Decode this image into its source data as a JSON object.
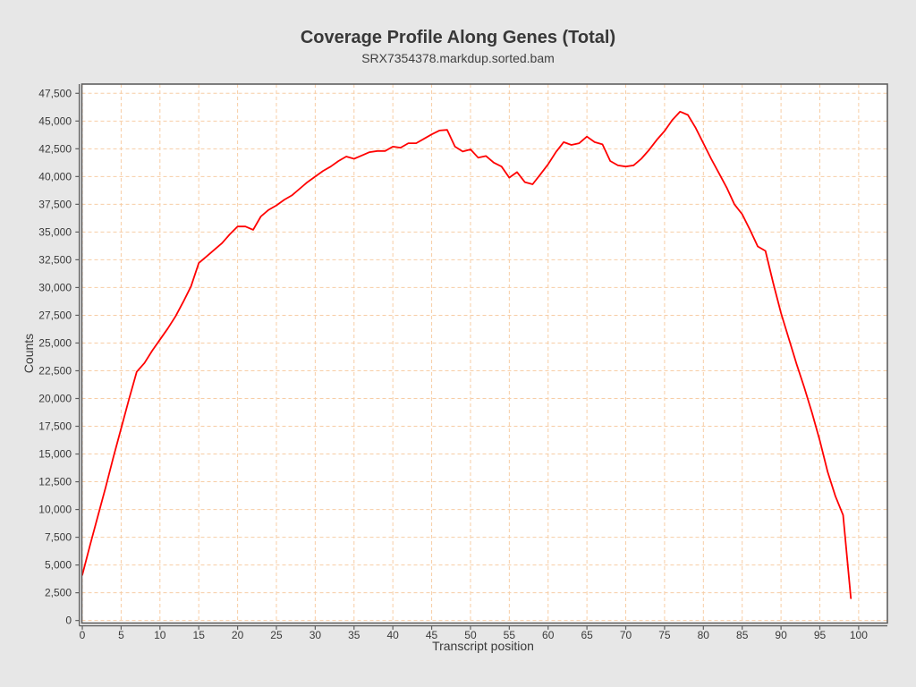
{
  "header": {
    "title": "Coverage Profile Along Genes (Total)",
    "subtitle": "SRX7354378.markdup.sorted.bam"
  },
  "style": {
    "page_bg": "#e7e7e7",
    "plot_bg": "#ffffff",
    "grid_color": "#f7cda5",
    "border_color": "#5f5f5f",
    "axis_color": "#5f5f5f",
    "text_color": "#3a3a3a",
    "line_color": "#ff0000"
  },
  "chart_data": {
    "type": "line",
    "title": "Coverage Profile Along Genes (Total)",
    "subtitle": "SRX7354378.markdup.sorted.bam",
    "xlabel": "Transcript position",
    "ylabel": "Counts",
    "xlim": [
      -0.06,
      103.7
    ],
    "ylim": [
      -230,
      48330
    ],
    "grid": true,
    "legend_position": "none",
    "x_ticks": [
      0,
      5,
      10,
      15,
      20,
      25,
      30,
      35,
      40,
      45,
      50,
      55,
      60,
      65,
      70,
      75,
      80,
      85,
      90,
      95,
      100
    ],
    "y_ticks": [
      0,
      2500,
      5000,
      7500,
      10000,
      12500,
      15000,
      17500,
      20000,
      22500,
      25000,
      27500,
      30000,
      32500,
      35000,
      37500,
      40000,
      42500,
      45000,
      47500
    ],
    "series": [
      {
        "name": "SRX7354378.markdup.sorted.bam",
        "color": "#ff0000",
        "x": [
          0,
          1,
          2,
          3,
          4,
          5,
          6,
          7,
          8,
          9,
          10,
          11,
          12,
          13,
          14,
          15,
          16,
          17,
          18,
          19,
          20,
          21,
          22,
          23,
          24,
          25,
          26,
          27,
          28,
          29,
          30,
          31,
          32,
          33,
          34,
          35,
          36,
          37,
          38,
          39,
          40,
          41,
          42,
          43,
          44,
          45,
          46,
          47,
          48,
          49,
          50,
          51,
          52,
          53,
          54,
          55,
          56,
          57,
          58,
          59,
          60,
          61,
          62,
          63,
          64,
          65,
          66,
          67,
          68,
          69,
          70,
          71,
          72,
          73,
          74,
          75,
          76,
          77,
          78,
          79,
          80,
          81,
          82,
          83,
          84,
          85,
          86,
          87,
          88,
          89,
          90,
          91,
          92,
          93,
          94,
          95,
          96,
          97,
          98,
          99
        ],
        "values": [
          4100,
          6800,
          9400,
          12000,
          14700,
          17300,
          19900,
          22400,
          23200,
          24300,
          25300,
          26300,
          27400,
          28700,
          30100,
          32200,
          32800,
          33400,
          34000,
          34800,
          35500,
          35500,
          35200,
          36400,
          37000,
          37400,
          37900,
          38300,
          38900,
          39500,
          40000,
          40500,
          40900,
          41400,
          41800,
          41600,
          41900,
          42200,
          42300,
          42300,
          42700,
          42600,
          43000,
          43000,
          43400,
          43800,
          44150,
          44200,
          42700,
          42250,
          42450,
          41700,
          41850,
          41250,
          40900,
          39900,
          40400,
          39500,
          39300,
          40200,
          41100,
          42200,
          43100,
          42850,
          43000,
          43600,
          43100,
          42900,
          41400,
          41000,
          40900,
          41000,
          41600,
          42400,
          43300,
          44100,
          45100,
          45850,
          45550,
          44400,
          43000,
          41600,
          40300,
          39000,
          37500,
          36600,
          35200,
          33700,
          33300,
          30400,
          27700,
          25400,
          23100,
          21000,
          18700,
          16200,
          13400,
          11200,
          9500,
          2000
        ]
      }
    ]
  }
}
